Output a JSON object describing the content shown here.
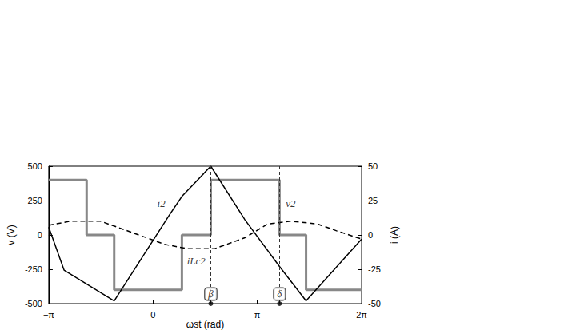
{
  "chart_data": {
    "type": "line",
    "x_label": "ωst (rad)",
    "y_label": "v (V)",
    "y2_label": "i (A)",
    "xlim": [
      -3.1416,
      6.2832
    ],
    "xticks": [
      {
        "value": -3.1416,
        "label": "−π"
      },
      0,
      {
        "value": 3.1416,
        "label": "π"
      },
      {
        "value": 6.2832,
        "label": "2π"
      }
    ],
    "ylim": [
      -500,
      500
    ],
    "yticks": [
      -500,
      -250,
      0,
      250,
      500
    ],
    "y2lim": [
      -50,
      50
    ],
    "y2ticks": [
      -50,
      -25,
      0,
      25,
      50
    ],
    "grid": false,
    "series": [
      {
        "name": "v2",
        "color": "#888888",
        "line_style": "solid",
        "x": [
          -3.1416,
          -2.0,
          -2.0,
          -1.17,
          -1.17,
          0.87,
          0.87,
          1.74,
          1.74,
          3.81,
          3.81,
          4.61,
          4.61,
          6.2832
        ],
        "values": [
          400,
          400,
          0,
          0,
          -400,
          -400,
          0,
          0,
          400,
          400,
          0,
          0,
          -400,
          -400
        ]
      },
      {
        "name": "i2",
        "color": "#000000",
        "line_style": "solid",
        "axis": "y2",
        "x": [
          -3.1416,
          -2.68,
          -1.17,
          0.48,
          0.87,
          1.74,
          2.77,
          3.81,
          4.61,
          6.2832
        ],
        "values": [
          5.7,
          -25.6,
          -48,
          14,
          28,
          50,
          11,
          -23,
          -48,
          -3
        ]
      },
      {
        "name": "iLc2",
        "color": "#000000",
        "line_style": "dashed",
        "axis": "y2",
        "x": [
          -3.1416,
          -2.5,
          -1.58,
          -0.66,
          0.37,
          1.05,
          1.86,
          2.77,
          3.46,
          4.15,
          4.95,
          5.53,
          6.2832
        ],
        "values": [
          7,
          10,
          10,
          2,
          -7,
          -10,
          -10,
          -2,
          8,
          10,
          8,
          3,
          -3
        ]
      }
    ],
    "annotations": [
      {
        "text": "i2",
        "x": 0.25,
        "y": 230
      },
      {
        "text": "v2",
        "x": 4.15,
        "y": 230
      },
      {
        "text": "iLc2",
        "x": 1.3,
        "y": -190
      }
    ],
    "markers": [
      {
        "label": "β",
        "x": 1.74
      },
      {
        "label": "δ",
        "x": 3.81
      }
    ]
  }
}
